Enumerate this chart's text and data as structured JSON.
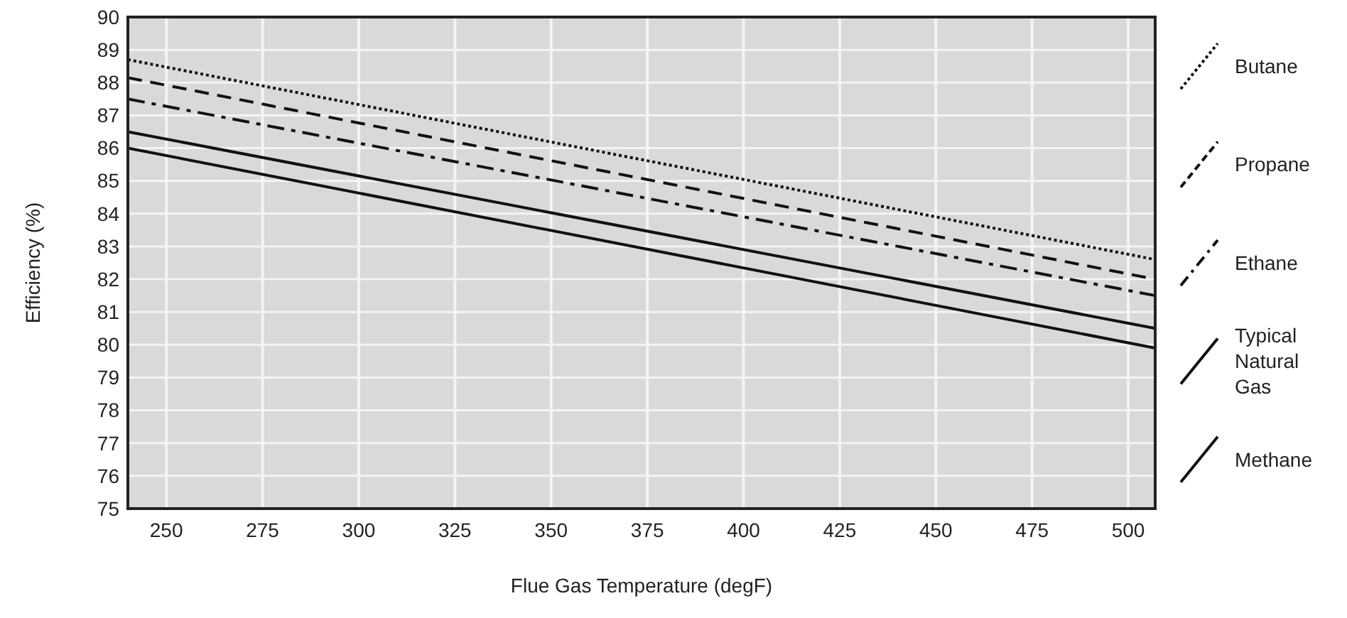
{
  "chart_data": {
    "type": "line",
    "xlabel": "Flue Gas Temperature (degF)",
    "ylabel": "Efficiency (%)",
    "xlim": [
      240,
      507
    ],
    "xticks": [
      250,
      275,
      300,
      325,
      350,
      375,
      400,
      425,
      450,
      475,
      500
    ],
    "ylim": [
      75,
      90
    ],
    "yticks": [
      75,
      76,
      77,
      78,
      79,
      80,
      81,
      82,
      83,
      84,
      85,
      86,
      87,
      88,
      89,
      90
    ],
    "grid": true,
    "legend": "right",
    "x": [
      240,
      507
    ],
    "series": [
      {
        "name": "Butane",
        "color": "#111111",
        "line_style": "dotted",
        "values": [
          88.7,
          82.6
        ]
      },
      {
        "name": "Propane",
        "color": "#111111",
        "line_style": "dashed",
        "values": [
          88.15,
          82.0
        ]
      },
      {
        "name": "Ethane",
        "color": "#111111",
        "line_style": "dashdot",
        "values": [
          87.5,
          81.5
        ]
      },
      {
        "name": "Typical Natural Gas",
        "color": "#111111",
        "line_style": "solid",
        "values": [
          86.5,
          80.5
        ]
      },
      {
        "name": "Methane",
        "color": "#111111",
        "line_style": "solid",
        "values": [
          86.0,
          79.9
        ]
      }
    ]
  }
}
